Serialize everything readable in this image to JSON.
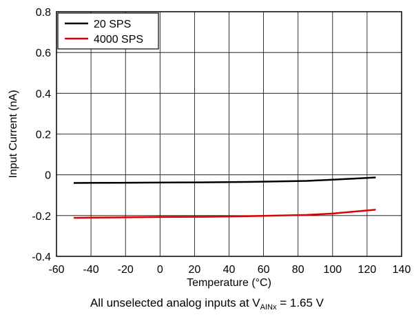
{
  "chart_data": {
    "type": "line",
    "title": "",
    "xlabel": "Temperature (°C)",
    "ylabel": "Input Current (nA)",
    "xlim": [
      -60,
      140
    ],
    "ylim": [
      -0.4,
      0.8
    ],
    "x_ticks": [
      -60,
      -40,
      -20,
      0,
      20,
      40,
      60,
      80,
      100,
      120,
      140
    ],
    "y_ticks": [
      -0.4,
      -0.2,
      0,
      0.2,
      0.4,
      0.6,
      0.8
    ],
    "x_tick_labels": [
      "-60",
      "-40",
      "-20",
      "0",
      "20",
      "40",
      "60",
      "80",
      "100",
      "120",
      "140"
    ],
    "y_tick_labels": [
      "-0.4",
      "-0.2",
      "0",
      "0.2",
      "0.4",
      "0.6",
      "0.8"
    ],
    "grid": true,
    "legend_position": "top-left",
    "series": [
      {
        "name": "20 SPS",
        "color": "#000000",
        "x": [
          -50,
          -25,
          0,
          25,
          50,
          85,
          100,
          125
        ],
        "y": [
          -0.04,
          -0.039,
          -0.038,
          -0.037,
          -0.035,
          -0.03,
          -0.024,
          -0.013
        ]
      },
      {
        "name": "4000 SPS",
        "color": "#e00000",
        "x": [
          -50,
          -25,
          0,
          25,
          50,
          85,
          100,
          125
        ],
        "y": [
          -0.211,
          -0.209,
          -0.207,
          -0.206,
          -0.203,
          -0.197,
          -0.19,
          -0.171
        ]
      }
    ],
    "caption": {
      "prefix": "All unselected analog inputs at V",
      "subscript": "AINx",
      "suffix": " = 1.65 V"
    }
  }
}
